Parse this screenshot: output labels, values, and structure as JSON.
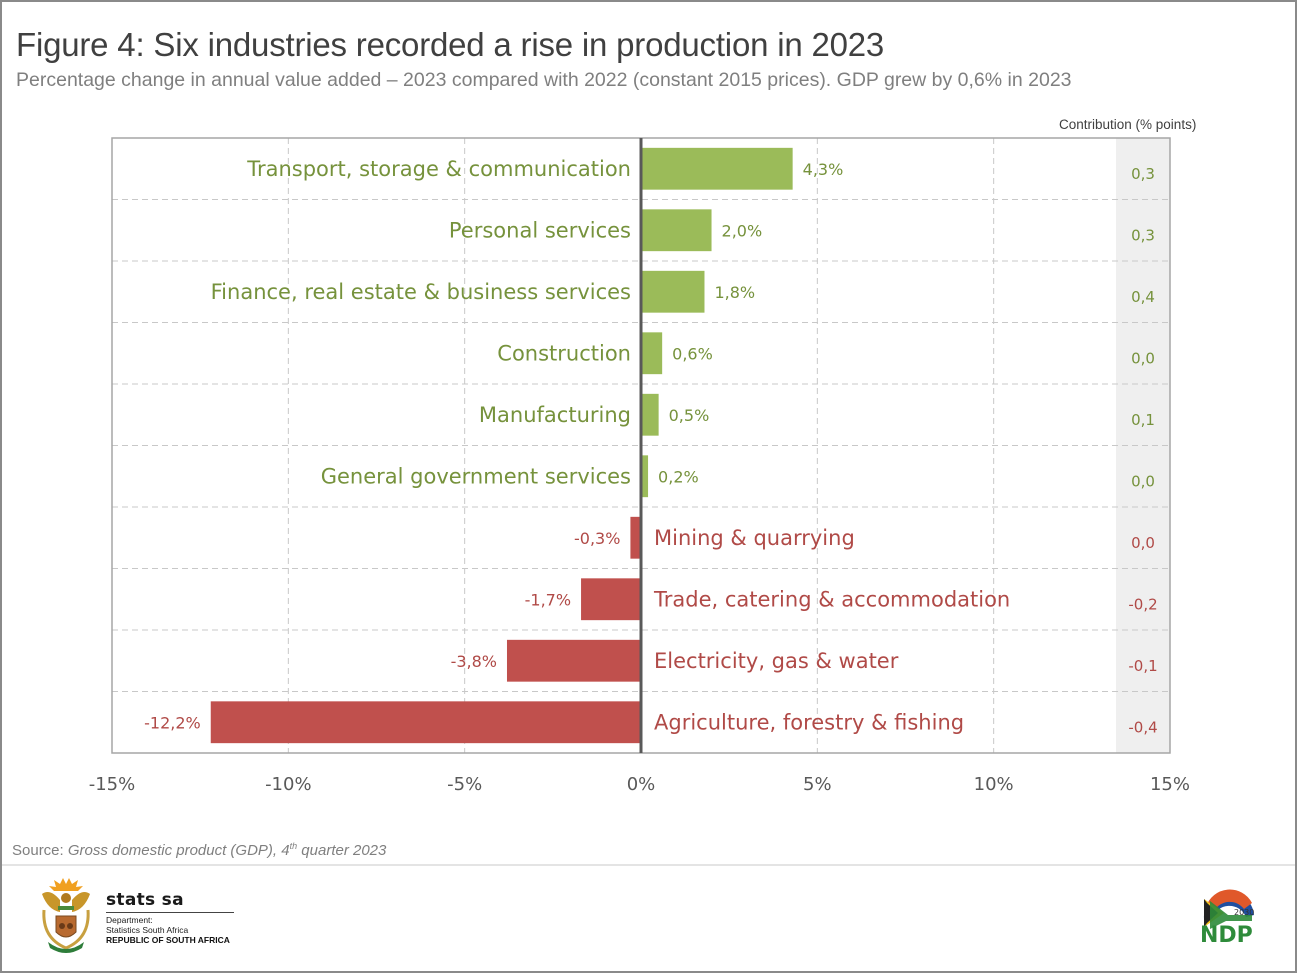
{
  "header": {
    "title": "Figure 4: Six industries recorded a rise in production in 2023",
    "subtitle": "Percentage change in annual value added – 2023 compared with 2022 (constant 2015 prices). GDP grew by 0,6% in 2023",
    "contribution_heading": "Contribution (% points)"
  },
  "footer": {
    "source_prefix": "Source: ",
    "source_title": "Gross domestic product (GDP), 4",
    "source_sup": "th",
    "source_suffix": " quarter 2023",
    "statssa_name": "stats sa",
    "statssa_dept_line1": "Department:",
    "statssa_dept_line2": "Statistics South Africa",
    "statssa_country": "REPUBLIC OF SOUTH AFRICA",
    "ndp_year": "2030",
    "ndp_label": "NDP",
    "logos": [
      "south-africa-coat-of-arms",
      "ndp-2030-logo"
    ]
  },
  "colors": {
    "positive_bar": "#9bbb59",
    "negative_bar": "#c0504d",
    "positive_text": "#76923c",
    "negative_text": "#b04a47",
    "contribution_column_bg": "#efefef",
    "zero_axis": "#595959",
    "grid": "#c8c8c8"
  },
  "chart_data": {
    "type": "bar",
    "orientation": "horizontal",
    "title": "Figure 4: Six industries recorded a rise in production in 2023",
    "subtitle": "Percentage change in annual value added – 2023 compared with 2022 (constant 2015 prices). GDP grew by 0,6% in 2023",
    "xlabel": "",
    "ylabel": "",
    "xlim": [
      -15,
      15
    ],
    "xticks": [
      -15,
      -10,
      -5,
      0,
      5,
      10,
      15
    ],
    "xtick_labels": [
      "-15%",
      "-10%",
      "-5%",
      "0%",
      "5%",
      "10%",
      "15%"
    ],
    "grid": true,
    "categories": [
      "Transport, storage & communication",
      "Personal services",
      "Finance, real estate & business services",
      "Construction",
      "Manufacturing",
      "General government services",
      "Mining & quarrying",
      "Trade, catering & accommodation",
      "Electricity, gas & water",
      "Agriculture, forestry & fishing"
    ],
    "values": [
      4.3,
      2.0,
      1.8,
      0.6,
      0.5,
      0.2,
      -0.3,
      -1.7,
      -3.8,
      -12.2
    ],
    "value_labels": [
      "4,3%",
      "2,0%",
      "1,8%",
      "0,6%",
      "0,5%",
      "0,2%",
      "-0,3%",
      "-1,7%",
      "-3,8%",
      "-12,2%"
    ],
    "contribution_heading": "Contribution (% points)",
    "contributions": [
      0.3,
      0.3,
      0.4,
      0.0,
      0.1,
      0.0,
      0.0,
      -0.2,
      -0.1,
      -0.4
    ],
    "contribution_labels": [
      "0,3",
      "0,3",
      "0,4",
      "0,0",
      "0,1",
      "0,0",
      "0,0",
      "-0,2",
      "-0,1",
      "-0,4"
    ],
    "legend": "none"
  }
}
